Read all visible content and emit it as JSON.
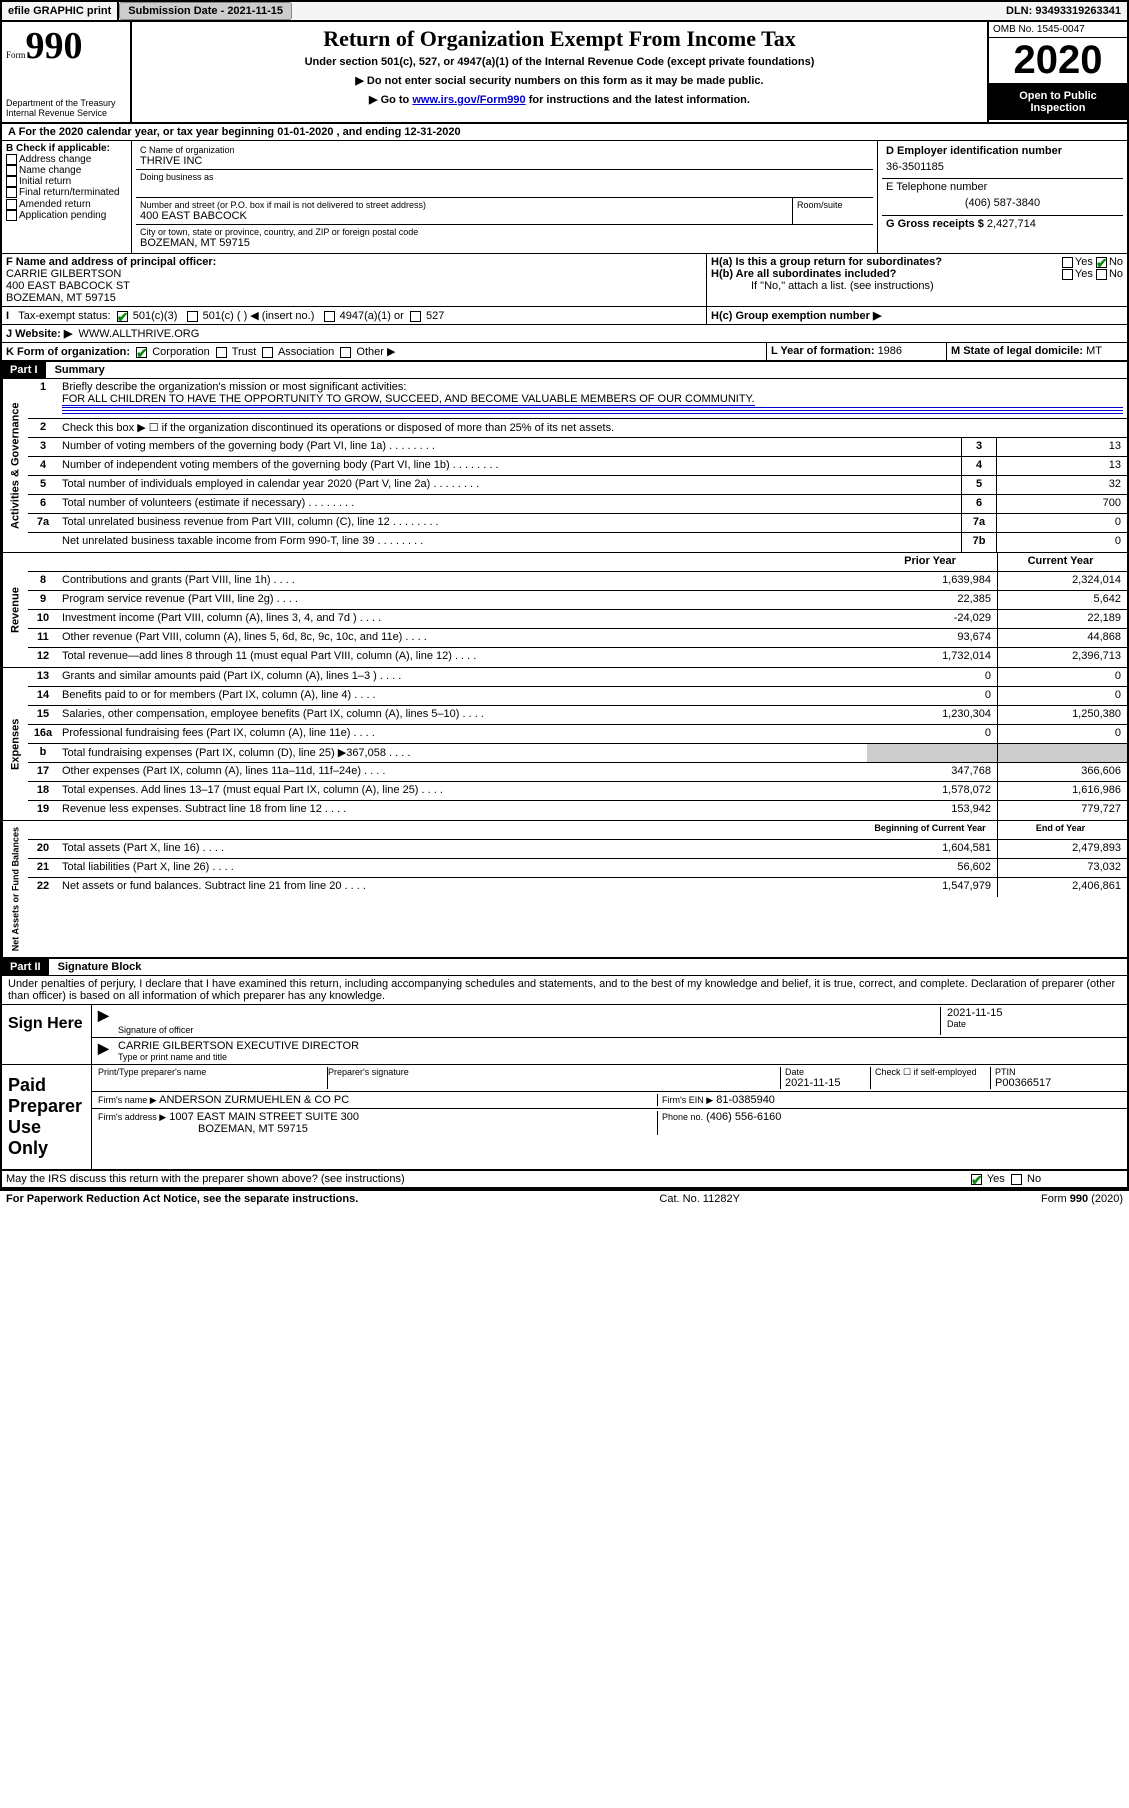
{
  "topbar": {
    "efile": "efile GRAPHIC print",
    "subdate_label": "Submission Date - 2021-11-15",
    "dln": "DLN: 93493319263341"
  },
  "header": {
    "form_label": "Form",
    "form_num": "990",
    "dept": "Department of the Treasury",
    "irs": "Internal Revenue Service",
    "title": "Return of Organization Exempt From Income Tax",
    "subtitle": "Under section 501(c), 527, or 4947(a)(1) of the Internal Revenue Code (except private foundations)",
    "note1": "▶ Do not enter social security numbers on this form as it may be made public.",
    "note2_pre": "▶ Go to ",
    "note2_link": "www.irs.gov/Form990",
    "note2_post": " for instructions and the latest information.",
    "omb": "OMB No. 1545-0047",
    "year": "2020",
    "open": "Open to Public Inspection"
  },
  "sectionA": {
    "tax_year": "For the 2020 calendar year, or tax year beginning 01-01-2020   , and ending 12-31-2020",
    "b_label": "B Check if applicable:",
    "checks": [
      "Address change",
      "Name change",
      "Initial return",
      "Final return/terminated",
      "Amended return",
      "Application pending"
    ],
    "c_label": "C Name of organization",
    "org_name": "THRIVE INC",
    "dba": "Doing business as",
    "street_label": "Number and street (or P.O. box if mail is not delivered to street address)",
    "room": "Room/suite",
    "street": "400 EAST BABCOCK",
    "city_label": "City or town, state or province, country, and ZIP or foreign postal code",
    "city": "BOZEMAN, MT  59715",
    "d_label": "D Employer identification number",
    "ein": "36-3501185",
    "e_label": "E Telephone number",
    "phone": "(406) 587-3840",
    "g_label": "G Gross receipts $ ",
    "gross": "2,427,714",
    "f_label": "F  Name and address of principal officer:",
    "officer": "CARRIE GILBERTSON",
    "officer_addr1": "400 EAST BABCOCK ST",
    "officer_addr2": "BOZEMAN, MT  59715",
    "ha": "H(a)  Is this a group return for subordinates?",
    "hb": "H(b)  Are all subordinates included?",
    "hnote": "If \"No,\" attach a list. (see instructions)",
    "hc": "H(c)  Group exemption number ▶",
    "exempt_label": "Tax-exempt status:",
    "ex1": "501(c)(3)",
    "ex2": "501(c) (  ) ◀ (insert no.)",
    "ex3": "4947(a)(1) or",
    "ex4": "527",
    "website_label": "J    Website: ▶",
    "website": "WWW.ALLTHRIVE.ORG",
    "k_label": "K Form of organization:",
    "k_opts": [
      "Corporation",
      "Trust",
      "Association",
      "Other ▶"
    ],
    "l_label": "L Year of formation: ",
    "l_val": "1986",
    "m_label": "M State of legal domicile: ",
    "m_val": "MT",
    "yes": "Yes",
    "no": "No"
  },
  "part1": {
    "label": "Part I",
    "title": "Summary",
    "line1_label": "Briefly describe the organization's mission or most significant activities:",
    "mission": "FOR ALL CHILDREN TO HAVE THE OPPORTUNITY TO GROW, SUCCEED, AND BECOME VALUABLE MEMBERS OF OUR COMMUNITY.",
    "line2": "Check this box ▶ ☐  if the organization discontinued its operations or disposed of more than 25% of its net assets.",
    "governance_label": "Activities & Governance",
    "revenue_label": "Revenue",
    "expenses_label": "Expenses",
    "net_label": "Net Assets or Fund Balances",
    "prior_year": "Prior Year",
    "current_year": "Current Year",
    "begin_year": "Beginning of Current Year",
    "end_year": "End of Year",
    "gov_lines": [
      {
        "n": "3",
        "t": "Number of voting members of the governing body (Part VI, line 1a)",
        "k": "3",
        "v": "13"
      },
      {
        "n": "4",
        "t": "Number of independent voting members of the governing body (Part VI, line 1b)",
        "k": "4",
        "v": "13"
      },
      {
        "n": "5",
        "t": "Total number of individuals employed in calendar year 2020 (Part V, line 2a)",
        "k": "5",
        "v": "32"
      },
      {
        "n": "6",
        "t": "Total number of volunteers (estimate if necessary)",
        "k": "6",
        "v": "700"
      },
      {
        "n": "7a",
        "t": "Total unrelated business revenue from Part VIII, column (C), line 12",
        "k": "7a",
        "v": "0"
      },
      {
        "n": "",
        "t": "Net unrelated business taxable income from Form 990-T, line 39",
        "k": "7b",
        "v": "0"
      }
    ],
    "rev_lines": [
      {
        "n": "8",
        "t": "Contributions and grants (Part VIII, line 1h)",
        "p": "1,639,984",
        "c": "2,324,014"
      },
      {
        "n": "9",
        "t": "Program service revenue (Part VIII, line 2g)",
        "p": "22,385",
        "c": "5,642"
      },
      {
        "n": "10",
        "t": "Investment income (Part VIII, column (A), lines 3, 4, and 7d )",
        "p": "-24,029",
        "c": "22,189"
      },
      {
        "n": "11",
        "t": "Other revenue (Part VIII, column (A), lines 5, 6d, 8c, 9c, 10c, and 11e)",
        "p": "93,674",
        "c": "44,868"
      },
      {
        "n": "12",
        "t": "Total revenue—add lines 8 through 11 (must equal Part VIII, column (A), line 12)",
        "p": "1,732,014",
        "c": "2,396,713"
      }
    ],
    "exp_lines": [
      {
        "n": "13",
        "t": "Grants and similar amounts paid (Part IX, column (A), lines 1–3 )",
        "p": "0",
        "c": "0"
      },
      {
        "n": "14",
        "t": "Benefits paid to or for members (Part IX, column (A), line 4)",
        "p": "0",
        "c": "0"
      },
      {
        "n": "15",
        "t": "Salaries, other compensation, employee benefits (Part IX, column (A), lines 5–10)",
        "p": "1,230,304",
        "c": "1,250,380"
      },
      {
        "n": "16a",
        "t": "Professional fundraising fees (Part IX, column (A), line 11e)",
        "p": "0",
        "c": "0"
      },
      {
        "n": "b",
        "t": "Total fundraising expenses (Part IX, column (D), line 25) ▶367,058",
        "p": "",
        "c": "",
        "gray": true
      },
      {
        "n": "17",
        "t": "Other expenses (Part IX, column (A), lines 11a–11d, 11f–24e)",
        "p": "347,768",
        "c": "366,606"
      },
      {
        "n": "18",
        "t": "Total expenses. Add lines 13–17 (must equal Part IX, column (A), line 25)",
        "p": "1,578,072",
        "c": "1,616,986"
      },
      {
        "n": "19",
        "t": "Revenue less expenses. Subtract line 18 from line 12",
        "p": "153,942",
        "c": "779,727"
      }
    ],
    "net_lines": [
      {
        "n": "20",
        "t": "Total assets (Part X, line 16)",
        "p": "1,604,581",
        "c": "2,479,893"
      },
      {
        "n": "21",
        "t": "Total liabilities (Part X, line 26)",
        "p": "56,602",
        "c": "73,032"
      },
      {
        "n": "22",
        "t": "Net assets or fund balances. Subtract line 21 from line 20",
        "p": "1,547,979",
        "c": "2,406,861"
      }
    ]
  },
  "part2": {
    "label": "Part II",
    "title": "Signature Block",
    "perjury": "Under penalties of perjury, I declare that I have examined this return, including accompanying schedules and statements, and to the best of my knowledge and belief, it is true, correct, and complete. Declaration of preparer (other than officer) is based on all information of which preparer has any knowledge.",
    "sign_here": "Sign Here",
    "sig_officer": "Signature of officer",
    "date_label": "Date",
    "date": "2021-11-15",
    "typed": "CARRIE GILBERTSON  EXECUTIVE DIRECTOR",
    "typed_label": "Type or print name and title",
    "paid": "Paid Preparer Use Only",
    "prep_name_label": "Print/Type preparer's name",
    "prep_sig_label": "Preparer's signature",
    "prep_date_label": "Date",
    "prep_date": "2021-11-15",
    "self_emp": "Check ☐ if self-employed",
    "ptin_label": "PTIN",
    "ptin": "P00366517",
    "firm_name_label": "Firm's name    ▶",
    "firm_name": "ANDERSON ZURMUEHLEN & CO PC",
    "firm_ein_label": "Firm's EIN ▶",
    "firm_ein": "81-0385940",
    "firm_addr_label": "Firm's address ▶",
    "firm_addr1": "1007 EAST MAIN STREET SUITE 300",
    "firm_addr2": "BOZEMAN, MT  59715",
    "phone_label": "Phone no.",
    "phone": "(406) 556-6160",
    "discuss": "May the IRS discuss this return with the preparer shown above? (see instructions)"
  },
  "footer": {
    "left": "For Paperwork Reduction Act Notice, see the separate instructions.",
    "mid": "Cat. No. 11282Y",
    "right": "Form 990 (2020)"
  }
}
